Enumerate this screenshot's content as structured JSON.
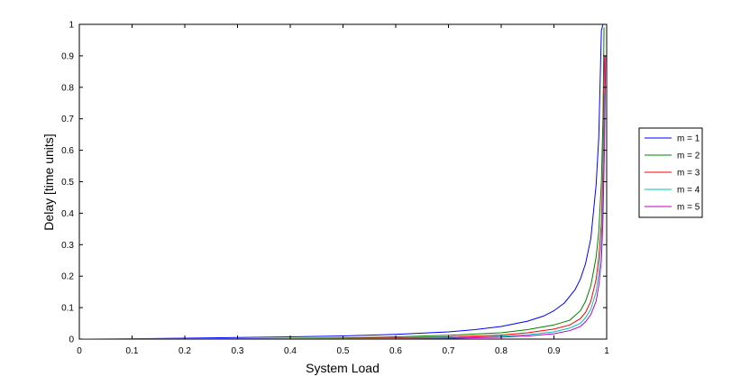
{
  "chart_data": {
    "type": "line",
    "title": "",
    "xlabel": "System Load",
    "ylabel": "Delay [time units]",
    "xlim": [
      0,
      1
    ],
    "ylim": [
      0,
      1
    ],
    "xticks": [
      "0",
      "0.1",
      "0.2",
      "0.3",
      "0.4",
      "0.5",
      "0.6",
      "0.7",
      "0.8",
      "0.9",
      "1"
    ],
    "yticks": [
      "0",
      "0.1",
      "0.2",
      "0.3",
      "0.4",
      "0.5",
      "0.6",
      "0.7",
      "0.8",
      "0.9",
      "1"
    ],
    "grid": false,
    "legend_position": "outside-right",
    "series": [
      {
        "name": "m = 1",
        "color": "#0000ff",
        "x": [
          0,
          0.1,
          0.2,
          0.3,
          0.4,
          0.5,
          0.6,
          0.7,
          0.75,
          0.8,
          0.85,
          0.88,
          0.9,
          0.92,
          0.94,
          0.95,
          0.96,
          0.97,
          0.98,
          0.985,
          0.99,
          0.993
        ],
        "y": [
          0.0,
          0.001,
          0.003,
          0.005,
          0.007,
          0.01,
          0.015,
          0.023,
          0.03,
          0.04,
          0.057,
          0.073,
          0.09,
          0.115,
          0.157,
          0.19,
          0.24,
          0.32,
          0.49,
          0.64,
          0.98,
          1.0
        ]
      },
      {
        "name": "m = 2",
        "color": "#008000",
        "x": [
          0,
          0.2,
          0.3,
          0.4,
          0.5,
          0.6,
          0.7,
          0.8,
          0.85,
          0.9,
          0.93,
          0.95,
          0.96,
          0.97,
          0.98,
          0.985,
          0.99,
          0.993,
          0.995
        ],
        "y": [
          0.0,
          0.0005,
          0.001,
          0.002,
          0.004,
          0.007,
          0.012,
          0.02,
          0.03,
          0.045,
          0.06,
          0.09,
          0.12,
          0.17,
          0.26,
          0.34,
          0.5,
          0.7,
          0.99
        ]
      },
      {
        "name": "m = 3",
        "color": "#ff0000",
        "x": [
          0,
          0.3,
          0.4,
          0.5,
          0.6,
          0.7,
          0.8,
          0.85,
          0.9,
          0.93,
          0.95,
          0.96,
          0.97,
          0.98,
          0.985,
          0.99,
          0.993,
          0.996
        ],
        "y": [
          0.0,
          0.0005,
          0.001,
          0.002,
          0.004,
          0.007,
          0.013,
          0.02,
          0.032,
          0.045,
          0.065,
          0.085,
          0.12,
          0.19,
          0.26,
          0.37,
          0.55,
          0.9
        ]
      },
      {
        "name": "m = 4",
        "color": "#00bfbf",
        "x": [
          0,
          0.4,
          0.5,
          0.6,
          0.7,
          0.8,
          0.85,
          0.9,
          0.93,
          0.95,
          0.96,
          0.97,
          0.98,
          0.985,
          0.99,
          0.993,
          0.996
        ],
        "y": [
          0.0,
          0.0005,
          0.001,
          0.002,
          0.004,
          0.009,
          0.014,
          0.023,
          0.035,
          0.05,
          0.068,
          0.095,
          0.15,
          0.21,
          0.31,
          0.46,
          0.78
        ]
      },
      {
        "name": "m = 5",
        "color": "#bf00bf",
        "x": [
          0,
          0.5,
          0.6,
          0.7,
          0.8,
          0.85,
          0.9,
          0.93,
          0.95,
          0.96,
          0.97,
          0.98,
          0.985,
          0.99,
          0.993,
          0.996,
          0.998
        ],
        "y": [
          0.0,
          0.0005,
          0.001,
          0.0025,
          0.006,
          0.01,
          0.017,
          0.027,
          0.04,
          0.055,
          0.078,
          0.12,
          0.17,
          0.25,
          0.38,
          0.62,
          0.9
        ]
      }
    ]
  }
}
